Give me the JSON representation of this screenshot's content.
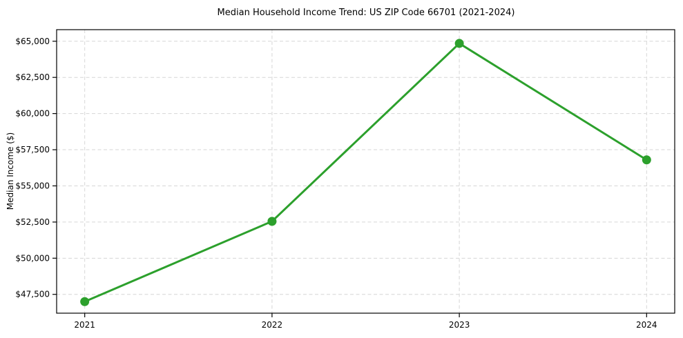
{
  "chart_data": {
    "type": "line",
    "title": "Median Household Income Trend: US ZIP Code 66701 (2021-2024)",
    "xlabel": "",
    "ylabel": "Median Income ($)",
    "categories": [
      "2021",
      "2022",
      "2023",
      "2024"
    ],
    "series": [
      {
        "name": "Median Household Income",
        "values": [
          47000,
          52550,
          64850,
          56800
        ]
      }
    ],
    "y_ticks": [
      47500,
      50000,
      52500,
      55000,
      57500,
      60000,
      62500,
      65000
    ],
    "y_tick_labels": [
      "$47,500",
      "$50,000",
      "$52,500",
      "$55,000",
      "$57,500",
      "$60,000",
      "$62,500",
      "$65,000"
    ],
    "ylim": [
      46200,
      65800
    ],
    "x_margin": 0.15,
    "grid": "on",
    "grid_style": "dashed",
    "legend_position": "none",
    "line_color": "#2ca02c",
    "marker": "circle-icon",
    "grid_color": "#d6d6d6",
    "axis_color": "#000000",
    "background_color": "#ffffff"
  }
}
